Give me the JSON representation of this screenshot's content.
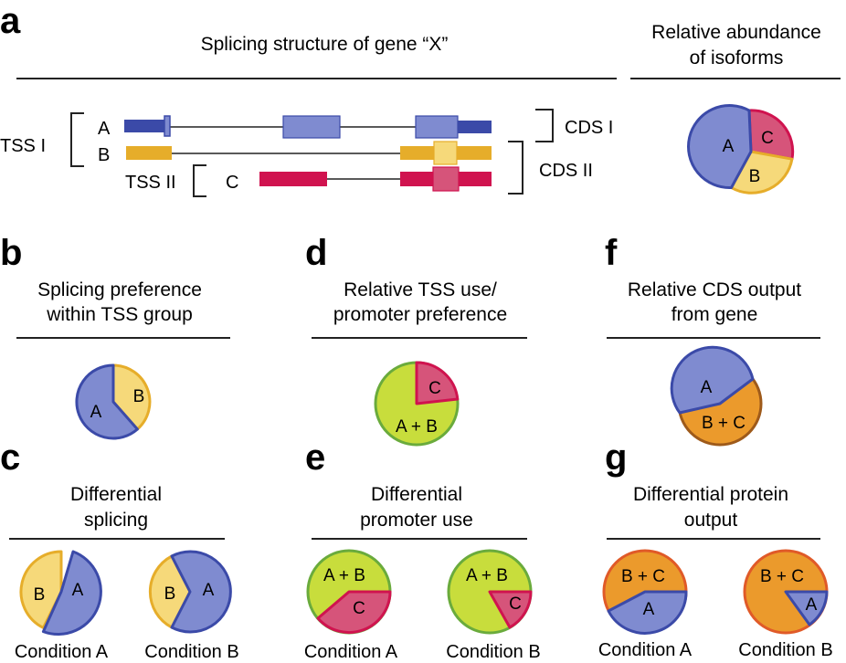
{
  "panels": {
    "a": {
      "letter": "a",
      "title": "Splicing structure of gene “X”",
      "abundance_title_1": "Relative abundance",
      "abundance_title_2": "of isoforms",
      "isoforms": {
        "A": "A",
        "B": "B",
        "C": "C"
      },
      "tss_1": "TSS I",
      "tss_2": "TSS II",
      "cds_1": "CDS I",
      "cds_2": "CDS II",
      "pie_labels": {
        "A": "A",
        "B": "B",
        "C": "C"
      }
    },
    "b": {
      "letter": "b",
      "title_1": "Splicing preference",
      "title_2": "within TSS group",
      "pie_labels": {
        "A": "A",
        "B": "B"
      }
    },
    "c": {
      "letter": "c",
      "title_1": "Differential",
      "title_2": "splicing",
      "cond_a": "Condition A",
      "cond_b": "Condition B",
      "pie_a": {
        "A": "A",
        "B": "B"
      },
      "pie_b": {
        "A": "A",
        "B": "B"
      }
    },
    "d": {
      "letter": "d",
      "title_1": "Relative TSS use/",
      "title_2": "promoter preference",
      "pie_labels": {
        "AB": "A + B",
        "C": "C"
      }
    },
    "e": {
      "letter": "e",
      "title_1": "Differential",
      "title_2": "promoter use",
      "cond_a": "Condition A",
      "cond_b": "Condition B",
      "pie_a": {
        "AB": "A + B",
        "C": "C"
      },
      "pie_b": {
        "AB": "A + B",
        "C": "C"
      }
    },
    "f": {
      "letter": "f",
      "title_1": "Relative CDS output",
      "title_2": "from gene",
      "pie_labels": {
        "A": "A",
        "BC": "B + C"
      }
    },
    "g": {
      "letter": "g",
      "title_1": "Differential protein",
      "title_2": "output",
      "cond_a": "Condition A",
      "cond_b": "Condition B",
      "pie_a": {
        "BC": "B + C",
        "A": "A"
      },
      "pie_b": {
        "BC": "B + C",
        "A": "A"
      }
    }
  },
  "colors": {
    "isoform_a": "#7f8bd0",
    "isoform_a_dark": "#3b4aa8",
    "isoform_b": "#f6d97a",
    "isoform_b_dark": "#e6ad2a",
    "isoform_c": "#d6547a",
    "isoform_c_dark": "#d0134f",
    "promoter_ab": "#c8dd3c",
    "promoter_ab_border": "#6aab3c",
    "cds_bc": "#eb9a2c",
    "cds_bc_border": "#9e5a1a",
    "cond_border": "#e05a28",
    "text": "#1a1a1a"
  }
}
